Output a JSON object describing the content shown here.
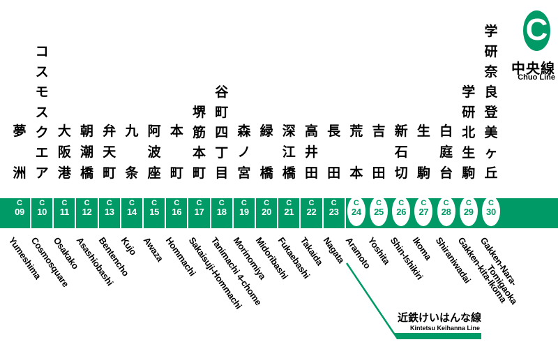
{
  "line": {
    "letter": "C",
    "name_ja": "中央線",
    "name_en": "Chuo Line",
    "color": "#009a66"
  },
  "stations": [
    {
      "number": "09",
      "ja": "夢洲",
      "en": "Yumeshima",
      "operator": "metro"
    },
    {
      "number": "10",
      "ja": "コスモスクエア",
      "en": "Cosmosquare",
      "operator": "metro"
    },
    {
      "number": "11",
      "ja": "大阪港",
      "en": "Osakako",
      "operator": "metro"
    },
    {
      "number": "12",
      "ja": "朝潮橋",
      "en": "Asashiobashi",
      "operator": "metro"
    },
    {
      "number": "13",
      "ja": "弁天町",
      "en": "Bentencho",
      "operator": "metro"
    },
    {
      "number": "14",
      "ja": "九条",
      "en": "Kujo",
      "operator": "metro"
    },
    {
      "number": "15",
      "ja": "阿波座",
      "en": "Awaza",
      "operator": "metro"
    },
    {
      "number": "16",
      "ja": "本町",
      "en": "Hommachi",
      "operator": "metro"
    },
    {
      "number": "17",
      "ja": "堺筋本町",
      "en": "Sakaisuji-Hommachi",
      "operator": "metro"
    },
    {
      "number": "18",
      "ja": "谷町四丁目",
      "en": "Tanimachi 4-chome",
      "operator": "metro"
    },
    {
      "number": "19",
      "ja": "森ノ宮",
      "en": "Morinomiya",
      "operator": "metro"
    },
    {
      "number": "20",
      "ja": "緑橋",
      "en": "Midoribashi",
      "operator": "metro"
    },
    {
      "number": "21",
      "ja": "深江橋",
      "en": "Fukaebashi",
      "operator": "metro"
    },
    {
      "number": "22",
      "ja": "高井田",
      "en": "Takaida",
      "operator": "metro"
    },
    {
      "number": "23",
      "ja": "長田",
      "en": "Nagata",
      "operator": "metro"
    },
    {
      "number": "24",
      "ja": "荒本",
      "en": "Aramoto",
      "operator": "kintetsu"
    },
    {
      "number": "25",
      "ja": "吉田",
      "en": "Yoshita",
      "operator": "kintetsu"
    },
    {
      "number": "26",
      "ja": "新石切",
      "en": "Shin-Ishikiri",
      "operator": "kintetsu"
    },
    {
      "number": "27",
      "ja": "生駒",
      "en": "Ikoma",
      "operator": "kintetsu"
    },
    {
      "number": "28",
      "ja": "白庭台",
      "en": "Shiraniwadai",
      "operator": "kintetsu"
    },
    {
      "number": "29",
      "ja": "学研北生駒",
      "en": "Gakken-kita-Ikoma",
      "operator": "kintetsu"
    },
    {
      "number": "30",
      "ja": "学研奈良登美ヶ丘",
      "en": [
        "Gakken-Nara-",
        "Tomigaoka"
      ],
      "operator": "kintetsu"
    }
  ],
  "branch": {
    "name_ja": "近鉄けいはんな線",
    "name_en": "Kintetsu Keihanna Line"
  }
}
